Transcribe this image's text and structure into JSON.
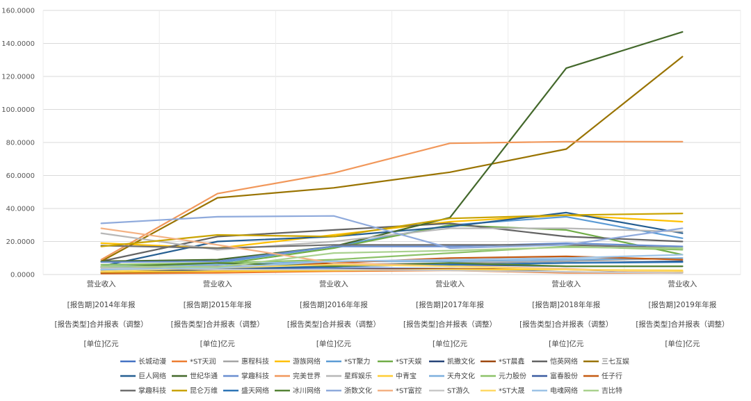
{
  "chart_data": {
    "type": "line",
    "title": "",
    "xlabel": "",
    "ylabel": "",
    "ylim": [
      0,
      160
    ],
    "yticks": [
      "0.0000",
      "20.0000",
      "40.0000",
      "60.0000",
      "80.0000",
      "100.0000",
      "120.0000",
      "140.0000",
      "160.0000"
    ],
    "grid": true,
    "legend": "bottom",
    "categories": [
      [
        "营业收入",
        "[报告期]2014年年报",
        "[报告类型]合并报表（调整）",
        "[单位]亿元"
      ],
      [
        "营业收入",
        "[报告期]2015年年报",
        "[报告类型]合并报表（调整）",
        "[单位]亿元"
      ],
      [
        "营业收入",
        "[报告期]2016年年报",
        "[报告类型]合并报表（调整）",
        "[单位]亿元"
      ],
      [
        "营业收入",
        "[报告期]2017年年报",
        "[报告类型]合并报表（调整）",
        "[单位]亿元"
      ],
      [
        "营业收入",
        "[报告期]2018年年报",
        "[报告类型]合并报表（调整）",
        "[单位]亿元"
      ],
      [
        "营业收入",
        "[报告期]2019年年报",
        "[报告类型]合并报表（调整）",
        "[单位]亿元"
      ]
    ],
    "series": [
      {
        "name": "长城动漫",
        "color": "#4472c4",
        "values": [
          3,
          3.5,
          4,
          3.5,
          1.5,
          1
        ]
      },
      {
        "name": "*ST天润",
        "color": "#ed7d31",
        "values": [
          0.5,
          1,
          2,
          2.5,
          1,
          1
        ]
      },
      {
        "name": "惠程科技",
        "color": "#a5a5a5",
        "values": [
          4,
          5,
          6,
          7,
          8,
          10
        ]
      },
      {
        "name": "游族网络",
        "color": "#ffc000",
        "values": [
          19,
          16,
          24,
          32,
          36,
          32
        ]
      },
      {
        "name": "*ST聚力",
        "color": "#5b9bd5",
        "values": [
          4,
          7,
          17,
          30,
          35,
          22
        ]
      },
      {
        "name": "*ST天娱",
        "color": "#70ad47",
        "values": [
          5,
          6,
          16,
          30,
          27,
          12
        ]
      },
      {
        "name": "凯撒文化",
        "color": "#264478",
        "values": [
          2,
          3,
          5,
          6,
          7,
          8
        ]
      },
      {
        "name": "*ST晨鑫",
        "color": "#9e480e",
        "values": [
          1,
          2,
          3,
          3.5,
          3,
          1.5
        ]
      },
      {
        "name": "恺英网络",
        "color": "#636363",
        "values": [
          8,
          23,
          27,
          31,
          23,
          20
        ]
      },
      {
        "name": "三七互娱",
        "color": "#997300",
        "values": [
          8,
          46.5,
          52.5,
          62,
          76,
          132
        ]
      },
      {
        "name": "巨人网络",
        "color": "#255e91",
        "values": [
          5,
          20,
          23,
          29,
          37.5,
          25
        ]
      },
      {
        "name": "世纪华通",
        "color": "#43682b",
        "values": [
          8,
          9,
          17,
          34.5,
          125,
          147
        ]
      },
      {
        "name": "掌趣科技",
        "color": "#698ed0",
        "values": [
          7.5,
          8,
          17,
          17,
          19,
          17
        ]
      },
      {
        "name": "完美世界",
        "color": "#f1975a",
        "values": [
          9,
          49,
          61.5,
          79.5,
          80.5,
          80.5
        ]
      },
      {
        "name": "星辉娱乐",
        "color": "#b7b7b7",
        "values": [
          25,
          15,
          20,
          28,
          28,
          26
        ]
      },
      {
        "name": "中青宝",
        "color": "#ffcd33",
        "values": [
          1.5,
          2,
          2.5,
          3,
          3,
          2.5
        ]
      },
      {
        "name": "天舟文化",
        "color": "#7cafdd",
        "values": [
          5,
          6,
          8,
          8,
          9,
          10
        ]
      },
      {
        "name": "元力股份",
        "color": "#8cc168",
        "values": [
          6,
          7,
          9,
          13,
          17,
          15
        ]
      },
      {
        "name": "富春股份",
        "color": "#3a5ba0",
        "values": [
          2,
          4,
          6,
          6,
          5,
          5
        ]
      },
      {
        "name": "任子行",
        "color": "#c55a11",
        "values": [
          3,
          4,
          7,
          10,
          11,
          9
        ]
      },
      {
        "name": "掌趣科技",
        "color": "#6f6f6f",
        "values": [
          17.5,
          16,
          18,
          18,
          18,
          16
        ]
      },
      {
        "name": "昆仑万维",
        "color": "#c9a300",
        "values": [
          17,
          24,
          23,
          34,
          36,
          37
        ]
      },
      {
        "name": "盛天网络",
        "color": "#2e75b6",
        "values": [
          3,
          4,
          5,
          6,
          7,
          7.5
        ]
      },
      {
        "name": "冰川网络",
        "color": "#548235",
        "values": [
          4.5,
          7,
          5,
          7,
          5,
          5
        ]
      },
      {
        "name": "浙数文化",
        "color": "#8faadc",
        "values": [
          31,
          35,
          35.5,
          16,
          18,
          28
        ]
      },
      {
        "name": "*ST富控",
        "color": "#f4b183",
        "values": [
          28,
          18,
          7,
          5,
          3.5,
          1
        ]
      },
      {
        "name": "ST游久",
        "color": "#c9c9c9",
        "values": [
          4,
          3,
          3,
          2.5,
          1.5,
          1
        ]
      },
      {
        "name": "*ST大晟",
        "color": "#ffd966",
        "values": [
          2,
          4,
          6,
          5,
          3,
          2
        ]
      },
      {
        "name": "电魂网络",
        "color": "#9dc3e6",
        "values": [
          3,
          4,
          8,
          9,
          10,
          12
        ]
      },
      {
        "name": "吉比特",
        "color": "#a9d18e",
        "values": [
          5,
          4.5,
          13,
          14.5,
          16.5,
          16
        ]
      }
    ]
  }
}
